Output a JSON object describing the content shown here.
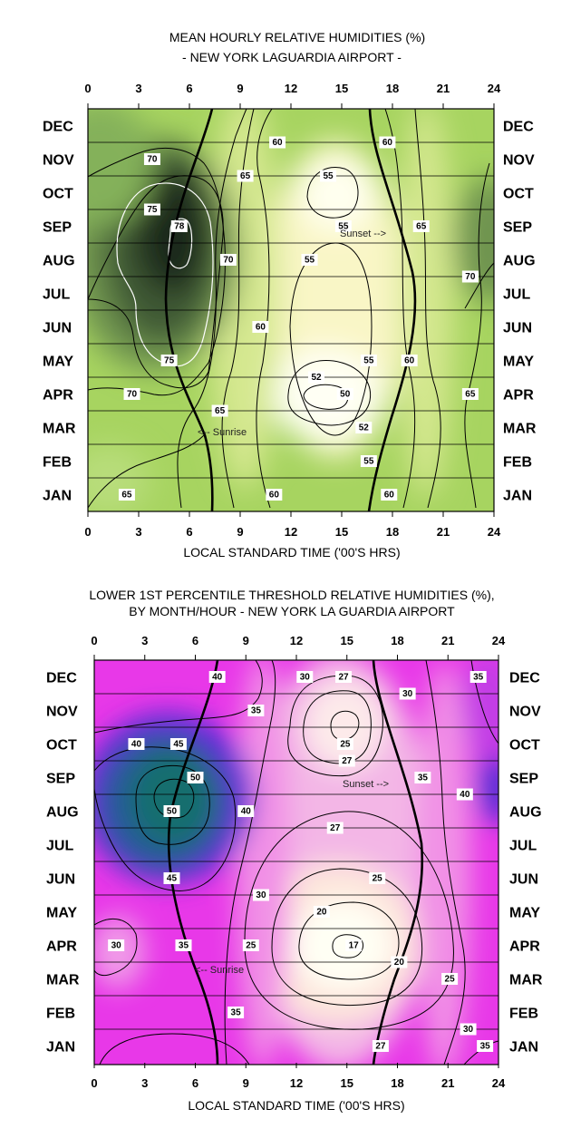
{
  "colors": {
    "top_dark": "#1d2a1c",
    "top_mid": "#9fd25c",
    "top_light": "#fffff0",
    "bottom_teal": "#186e6e",
    "bottom_magenta": "#ee28ee",
    "bottom_light": "#fffff4"
  },
  "chart_data": [
    {
      "type": "heatmap",
      "title": "MEAN HOURLY RELATIVE HUMIDITIES (%)",
      "subtitle": "- NEW YORK LAGUARDIA AIRPORT -",
      "xlabel": "LOCAL STANDARD TIME ('00'S HRS)",
      "ylabel": "",
      "xlim": [
        0,
        24
      ],
      "x_ticks": [
        "0",
        "3",
        "6",
        "9",
        "12",
        "15",
        "18",
        "21",
        "24"
      ],
      "y_categories": [
        "DEC",
        "NOV",
        "OCT",
        "SEP",
        "AUG",
        "JUL",
        "JUN",
        "MAY",
        "APR",
        "MAR",
        "FEB",
        "JAN"
      ],
      "color_scale": "green (humid) to pale yellow (dry)",
      "contour_labels": [
        {
          "text": "70",
          "x": 3.8,
          "m": "NOV"
        },
        {
          "text": "65",
          "x": 9.3,
          "m": "NOV-OCT"
        },
        {
          "text": "60",
          "x": 11.2,
          "m": "DEC-NOV"
        },
        {
          "text": "55",
          "x": 14.2,
          "m": "NOV-OCT"
        },
        {
          "text": "60",
          "x": 17.7,
          "m": "DEC-NOV"
        },
        {
          "text": "75",
          "x": 3.8,
          "m": "OCT-SEP"
        },
        {
          "text": "78",
          "x": 5.4,
          "m": "SEP"
        },
        {
          "text": "55",
          "x": 15.1,
          "m": "SEP"
        },
        {
          "text": "65",
          "x": 19.7,
          "m": "SEP"
        },
        {
          "text": "70",
          "x": 8.3,
          "m": "AUG"
        },
        {
          "text": "55",
          "x": 13.1,
          "m": "AUG"
        },
        {
          "text": "70",
          "x": 22.6,
          "m": "AUG-JUL"
        },
        {
          "text": "60",
          "x": 10.2,
          "m": "JUN"
        },
        {
          "text": "55",
          "x": 16.6,
          "m": "MAY"
        },
        {
          "text": "75",
          "x": 4.8,
          "m": "MAY"
        },
        {
          "text": "60",
          "x": 19.0,
          "m": "MAY"
        },
        {
          "text": "52",
          "x": 13.5,
          "m": "MAY-APR"
        },
        {
          "text": "70",
          "x": 2.6,
          "m": "APR"
        },
        {
          "text": "65",
          "x": 22.6,
          "m": "APR"
        },
        {
          "text": "50",
          "x": 15.2,
          "m": "APR"
        },
        {
          "text": "65",
          "x": 7.8,
          "m": "APR-MAR"
        },
        {
          "text": "52",
          "x": 16.3,
          "m": "MAR"
        },
        {
          "text": "55",
          "x": 16.6,
          "m": "FEB"
        },
        {
          "text": "65",
          "x": 2.3,
          "m": "JAN"
        },
        {
          "text": "60",
          "x": 11.0,
          "m": "JAN"
        },
        {
          "text": "60",
          "x": 17.8,
          "m": "JAN"
        }
      ],
      "annotations": [
        "Sunset -->",
        "<-- Sunrise"
      ]
    },
    {
      "type": "heatmap",
      "title": "LOWER 1ST PERCENTILE THRESHOLD RELATIVE HUMIDITIES (%),",
      "subtitle": "BY MONTH/HOUR - NEW YORK LA GUARDIA AIRPORT",
      "xlabel": "LOCAL STANDARD TIME ('00'S HRS)",
      "ylabel": "",
      "xlim": [
        0,
        24
      ],
      "x_ticks": [
        "0",
        "3",
        "6",
        "9",
        "12",
        "15",
        "18",
        "21",
        "24"
      ],
      "y_categories": [
        "DEC",
        "NOV",
        "OCT",
        "SEP",
        "AUG",
        "JUL",
        "JUN",
        "MAY",
        "APR",
        "MAR",
        "FEB",
        "JAN"
      ],
      "color_scale": "teal (humid) through magenta to pale yellow (dry)",
      "contour_labels": [
        {
          "text": "40",
          "x": 7.3,
          "m": "DEC"
        },
        {
          "text": "30",
          "x": 12.5,
          "m": "DEC"
        },
        {
          "text": "27",
          "x": 14.8,
          "m": "DEC"
        },
        {
          "text": "30",
          "x": 18.6,
          "m": "DEC-NOV"
        },
        {
          "text": "35",
          "x": 22.8,
          "m": "DEC"
        },
        {
          "text": "35",
          "x": 9.6,
          "m": "NOV"
        },
        {
          "text": "25",
          "x": 14.9,
          "m": "OCT"
        },
        {
          "text": "40",
          "x": 2.5,
          "m": "OCT"
        },
        {
          "text": "45",
          "x": 5.0,
          "m": "OCT"
        },
        {
          "text": "27",
          "x": 15.0,
          "m": "OCT-SEP"
        },
        {
          "text": "50",
          "x": 6.0,
          "m": "SEP"
        },
        {
          "text": "35",
          "x": 19.5,
          "m": "SEP"
        },
        {
          "text": "40",
          "x": 22.0,
          "m": "SEP-AUG"
        },
        {
          "text": "50",
          "x": 4.6,
          "m": "AUG"
        },
        {
          "text": "40",
          "x": 9.0,
          "m": "AUG"
        },
        {
          "text": "27",
          "x": 14.3,
          "m": "AUG-JUL"
        },
        {
          "text": "25",
          "x": 16.8,
          "m": "JUN"
        },
        {
          "text": "45",
          "x": 4.6,
          "m": "JUN"
        },
        {
          "text": "30",
          "x": 9.9,
          "m": "JUN-MAY"
        },
        {
          "text": "20",
          "x": 13.5,
          "m": "MAY"
        },
        {
          "text": "30",
          "x": 1.3,
          "m": "APR"
        },
        {
          "text": "35",
          "x": 5.3,
          "m": "APR"
        },
        {
          "text": "25",
          "x": 9.3,
          "m": "APR"
        },
        {
          "text": "17",
          "x": 15.4,
          "m": "APR"
        },
        {
          "text": "20",
          "x": 18.1,
          "m": "APR-MAR"
        },
        {
          "text": "25",
          "x": 21.1,
          "m": "MAR"
        },
        {
          "text": "35",
          "x": 8.4,
          "m": "FEB"
        },
        {
          "text": "30",
          "x": 22.2,
          "m": "FEB-JAN"
        },
        {
          "text": "27",
          "x": 17.0,
          "m": "JAN"
        },
        {
          "text": "35",
          "x": 23.2,
          "m": "JAN"
        }
      ],
      "annotations": [
        "Sunset -->",
        "<-- Sunrise"
      ]
    }
  ]
}
